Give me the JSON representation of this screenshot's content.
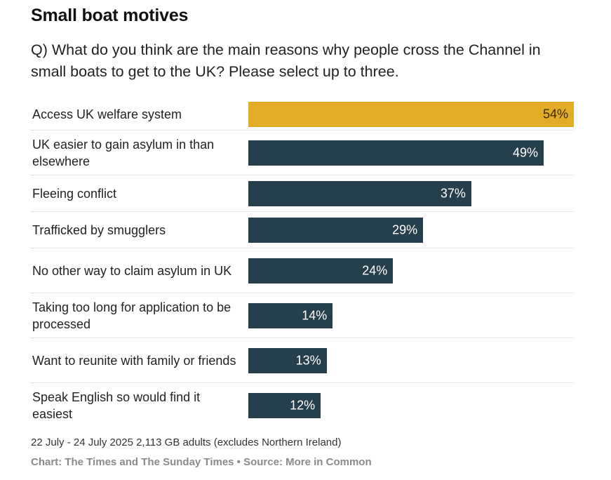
{
  "title": "Small boat motives",
  "subtitle": "Q) What do you think are the main reasons why people cross the Channel in small boats to get to the UK? Please select up to three.",
  "note": "22 July - 24 July 2025 2,113 GB adults (excludes Northern Ireland)",
  "source": "Chart: The Times and The Sunday Times • Source: More in Common",
  "colors": {
    "highlight": "#e3ac26",
    "default": "#253f4c"
  },
  "chart_data": {
    "type": "bar",
    "orientation": "horizontal",
    "categories": [
      "Access UK welfare system",
      "UK easier to gain asylum in than elsewhere",
      "Fleeing conflict",
      "Trafficked by smugglers",
      "No other way to claim asylum in UK",
      "Taking too long for application to be processed",
      "Want to reunite with family or friends",
      "Speak English so would find it easiest"
    ],
    "values": [
      54,
      49,
      37,
      29,
      24,
      14,
      13,
      12
    ],
    "value_labels": [
      "54%",
      "49%",
      "37%",
      "29%",
      "24%",
      "14%",
      "13%",
      "12%"
    ],
    "highlighted": [
      true,
      false,
      false,
      false,
      false,
      false,
      false,
      false
    ],
    "xlim": [
      0,
      54
    ],
    "unit": "%",
    "grid": false,
    "title": "Small boat motives",
    "xlabel": "",
    "ylabel": ""
  }
}
